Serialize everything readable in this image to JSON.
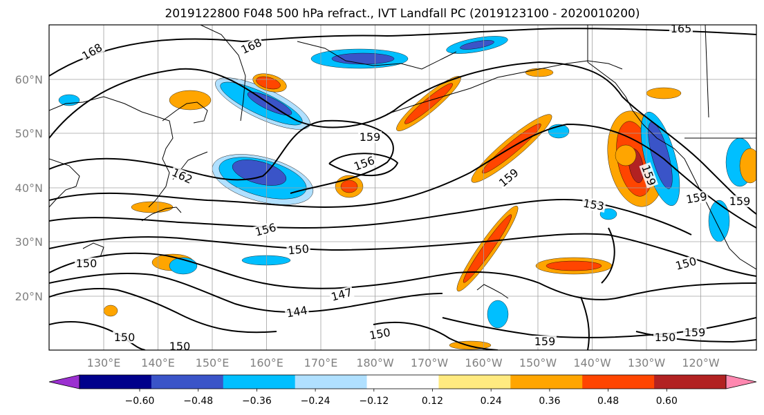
{
  "title": "2019122800 F048 500 hPa refract., IVT Landfall PC (2019123100 - 2020010200)",
  "map": {
    "lat_labels": [
      "60°N",
      "50°N",
      "40°N",
      "30°N",
      "20°N"
    ],
    "lon_labels": [
      "130°E",
      "140°E",
      "150°E",
      "160°E",
      "170°E",
      "180°W",
      "170°W",
      "160°W",
      "150°W",
      "140°W",
      "130°W",
      "120°W"
    ],
    "contour_labels": [
      "168",
      "168",
      "165",
      "162",
      "159",
      "159",
      "159",
      "159",
      "159",
      "156",
      "156",
      "153",
      "150",
      "150",
      "150",
      "147",
      "144",
      "150",
      "150",
      "150",
      "159",
      "159",
      "150"
    ]
  },
  "colorbar": {
    "tick_labels": [
      "−0.60",
      "−0.48",
      "−0.36",
      "−0.24",
      "−0.12",
      "0.12",
      "0.24",
      "0.36",
      "0.48",
      "0.60"
    ],
    "colors": [
      "#9b30d0",
      "#00008b",
      "#3a54c8",
      "#00bfff",
      "#b0e0ff",
      "#ffffff",
      "#ffea80",
      "#ffa500",
      "#ff4500",
      "#b22222",
      "#ff88b0"
    ]
  },
  "colors": {
    "neg_strong": "#3a54c8",
    "neg_mid": "#00bfff",
    "neg_weak": "#b0e0ff",
    "pos_weak": "#ffea80",
    "pos_mid": "#ffa500",
    "pos_strong": "#ff4500",
    "pos_xstrong": "#b22222"
  }
}
